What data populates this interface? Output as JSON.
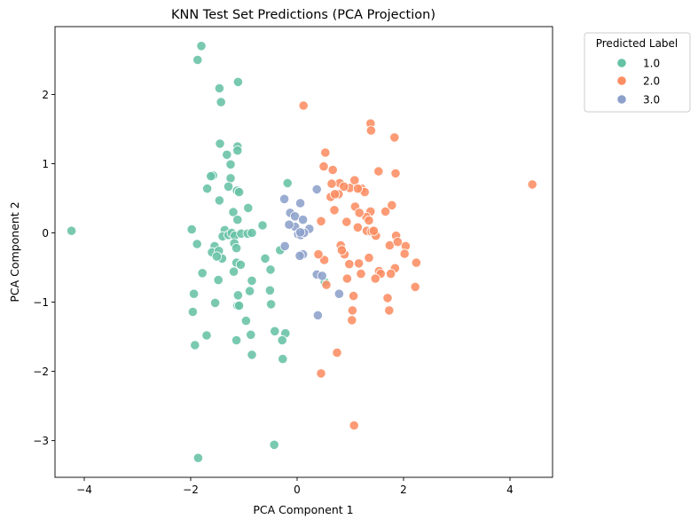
{
  "chart_data": {
    "type": "scatter",
    "title": "KNN Test Set Predictions (PCA Projection)",
    "xlabel": "PCA Component 1",
    "ylabel": "PCA Component 2",
    "xlim": [
      -4.55,
      4.8
    ],
    "ylim": [
      -3.53,
      2.98
    ],
    "xticks": [
      -4,
      -2,
      0,
      2,
      4
    ],
    "xtick_labels": [
      "−4",
      "−2",
      "0",
      "2",
      "4"
    ],
    "yticks": [
      -3,
      -2,
      -1,
      0,
      1,
      2
    ],
    "ytick_labels": [
      "−3",
      "−2",
      "−1",
      "0",
      "1",
      "2"
    ],
    "grid": false,
    "legend": {
      "title": "Predicted Label",
      "placement": "outside-top-right"
    },
    "series": [
      {
        "name": "1.0",
        "color": "#66c2a5",
        "points": [
          [
            -1.8,
            2.7
          ],
          [
            -1.87,
            2.5
          ],
          [
            -1.46,
            2.09
          ],
          [
            -1.11,
            2.18
          ],
          [
            -1.43,
            1.89
          ],
          [
            -1.45,
            1.29
          ],
          [
            -1.12,
            1.25
          ],
          [
            -1.12,
            1.19
          ],
          [
            -1.32,
            1.13
          ],
          [
            -1.25,
            0.99
          ],
          [
            -1.58,
            0.83
          ],
          [
            -1.62,
            0.82
          ],
          [
            -1.25,
            0.79
          ],
          [
            -1.29,
            0.67
          ],
          [
            -1.13,
            0.61
          ],
          [
            -1.69,
            0.64
          ],
          [
            -1.09,
            0.59
          ],
          [
            -1.46,
            0.47
          ],
          [
            -0.92,
            0.36
          ],
          [
            -1.2,
            0.3
          ],
          [
            -0.65,
            0.11
          ],
          [
            -1.12,
            0.19
          ],
          [
            -0.18,
            0.72
          ],
          [
            -1.98,
            0.05
          ],
          [
            -1.36,
            0.04
          ],
          [
            -1.4,
            -0.05
          ],
          [
            -1.29,
            -0.03
          ],
          [
            -1.23,
            0.0
          ],
          [
            -1.17,
            -0.04
          ],
          [
            -1.05,
            -0.01
          ],
          [
            -0.93,
            -0.01
          ],
          [
            -0.85,
            0.0
          ],
          [
            -1.88,
            -0.16
          ],
          [
            -1.55,
            -0.19
          ],
          [
            -1.6,
            -0.28
          ],
          [
            -1.47,
            -0.26
          ],
          [
            -1.18,
            -0.15
          ],
          [
            -1.14,
            -0.22
          ],
          [
            -1.41,
            -0.37
          ],
          [
            -1.51,
            -0.34
          ],
          [
            -1.14,
            -0.43
          ],
          [
            -1.06,
            -0.46
          ],
          [
            -0.6,
            -0.37
          ],
          [
            -0.32,
            -0.25
          ],
          [
            -1.78,
            -0.58
          ],
          [
            -1.19,
            -0.56
          ],
          [
            -0.85,
            -0.69
          ],
          [
            -1.48,
            -0.68
          ],
          [
            -0.89,
            -0.84
          ],
          [
            -1.94,
            -0.88
          ],
          [
            -1.11,
            -0.9
          ],
          [
            -0.51,
            -0.83
          ],
          [
            -0.5,
            -0.53
          ],
          [
            -1.54,
            -1.01
          ],
          [
            -1.12,
            -1.05
          ],
          [
            -1.09,
            -1.05
          ],
          [
            -0.49,
            -1.03
          ],
          [
            -1.96,
            -1.14
          ],
          [
            -0.96,
            -1.27
          ],
          [
            -0.42,
            -1.42
          ],
          [
            -0.22,
            -1.45
          ],
          [
            -0.87,
            -1.47
          ],
          [
            -1.7,
            -1.48
          ],
          [
            -1.14,
            -1.55
          ],
          [
            -0.28,
            -1.55
          ],
          [
            -1.92,
            -1.62
          ],
          [
            -0.85,
            -1.76
          ],
          [
            -0.27,
            -1.82
          ],
          [
            -0.43,
            -3.06
          ],
          [
            -1.86,
            -3.25
          ],
          [
            -4.24,
            0.03
          ],
          [
            0.52,
            -0.71
          ]
        ]
      },
      {
        "name": "2.0",
        "color": "#fc8d62",
        "points": [
          [
            0.12,
            1.84
          ],
          [
            1.38,
            1.58
          ],
          [
            1.39,
            1.48
          ],
          [
            1.83,
            1.38
          ],
          [
            0.53,
            1.16
          ],
          [
            0.5,
            0.96
          ],
          [
            0.67,
            0.91
          ],
          [
            1.53,
            0.89
          ],
          [
            1.85,
            0.86
          ],
          [
            0.8,
            0.72
          ],
          [
            0.99,
            0.65
          ],
          [
            1.08,
            0.76
          ],
          [
            1.21,
            0.64
          ],
          [
            1.27,
            0.59
          ],
          [
            0.65,
            0.71
          ],
          [
            0.78,
            0.56
          ],
          [
            0.63,
            0.52
          ],
          [
            1.14,
            0.64
          ],
          [
            0.71,
            0.56
          ],
          [
            0.88,
            0.67
          ],
          [
            0.7,
            0.33
          ],
          [
            1.09,
            0.38
          ],
          [
            1.38,
            0.31
          ],
          [
            1.66,
            0.31
          ],
          [
            1.78,
            0.4
          ],
          [
            1.3,
            0.23
          ],
          [
            0.93,
            0.16
          ],
          [
            1.35,
            0.18
          ],
          [
            1.14,
            0.08
          ],
          [
            1.31,
            0.03
          ],
          [
            1.4,
            0.02
          ],
          [
            1.48,
            -0.04
          ],
          [
            1.86,
            -0.04
          ],
          [
            0.45,
            0.17
          ],
          [
            0.82,
            -0.18
          ],
          [
            1.74,
            -0.18
          ],
          [
            1.89,
            -0.13
          ],
          [
            2.04,
            -0.19
          ],
          [
            2.02,
            -0.3
          ],
          [
            2.24,
            -0.43
          ],
          [
            1.35,
            -0.36
          ],
          [
            1.54,
            -0.55
          ],
          [
            1.57,
            -0.59
          ],
          [
            1.84,
            -0.51
          ],
          [
            0.51,
            -0.39
          ],
          [
            0.89,
            -0.31
          ],
          [
            0.98,
            -0.45
          ],
          [
            1.16,
            -0.44
          ],
          [
            1.2,
            -0.59
          ],
          [
            1.47,
            -0.66
          ],
          [
            1.76,
            -0.59
          ],
          [
            2.22,
            -0.78
          ],
          [
            1.06,
            -0.91
          ],
          [
            1.7,
            -0.94
          ],
          [
            1.73,
            -1.12
          ],
          [
            1.04,
            -1.12
          ],
          [
            1.03,
            -1.26
          ],
          [
            0.75,
            -1.73
          ],
          [
            0.45,
            -2.03
          ],
          [
            1.07,
            -2.78
          ],
          [
            0.94,
            -0.66
          ],
          [
            0.4,
            -0.31
          ],
          [
            0.55,
            -0.75
          ],
          [
            1.44,
            0.03
          ],
          [
            4.42,
            0.7
          ],
          [
            0.84,
            -0.25
          ],
          [
            1.17,
            0.29
          ]
        ]
      },
      {
        "name": "3.0",
        "color": "#8da0cb",
        "points": [
          [
            0.37,
            0.63
          ],
          [
            -0.24,
            0.49
          ],
          [
            0.06,
            0.43
          ],
          [
            -0.13,
            0.29
          ],
          [
            -0.04,
            0.24
          ],
          [
            0.11,
            0.19
          ],
          [
            -0.04,
            0.09
          ],
          [
            0.23,
            0.06
          ],
          [
            -0.15,
            0.12
          ],
          [
            0.02,
            -0.02
          ],
          [
            0.07,
            -0.03
          ],
          [
            0.13,
            0.0
          ],
          [
            -0.23,
            -0.19
          ],
          [
            0.11,
            -0.31
          ],
          [
            0.05,
            -0.33
          ],
          [
            0.37,
            -0.6
          ],
          [
            0.47,
            -0.62
          ],
          [
            0.79,
            -0.88
          ],
          [
            0.39,
            -1.19
          ],
          [
            0.06,
            0.01
          ]
        ]
      }
    ]
  }
}
